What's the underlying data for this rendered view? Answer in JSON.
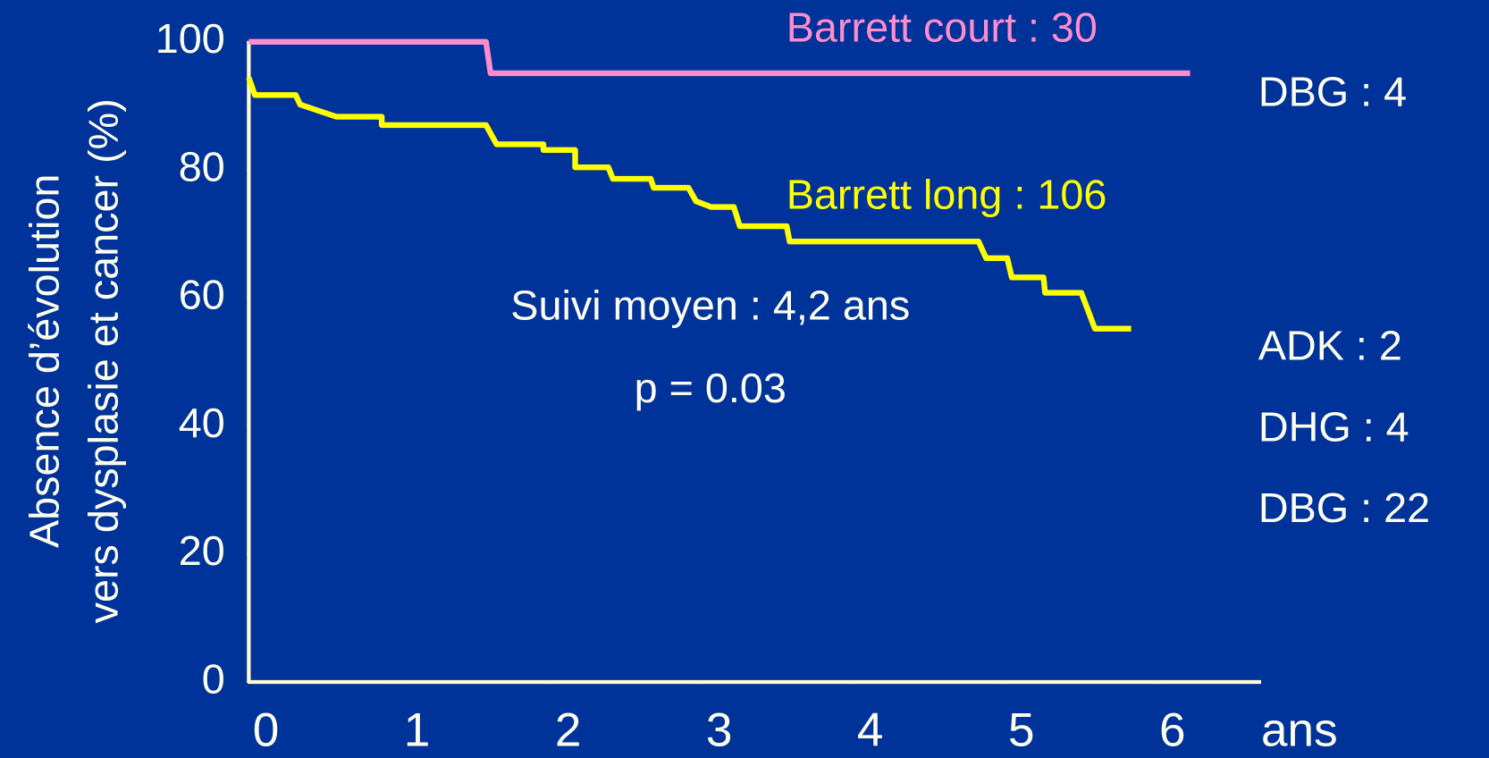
{
  "chart_data": {
    "type": "line",
    "y_label": [
      "Absence d’évolution",
      "vers dysplasie et cancer (%)"
    ],
    "x_label": "ans",
    "series": [
      {
        "name": "Barrett court : 30",
        "color": "#ff8ccc",
        "x": [
          0,
          1.57,
          1.6,
          6.23
        ],
        "values": [
          100,
          100,
          95.1,
          95.1
        ]
      },
      {
        "name": "Barrett long : 106",
        "color": "#ffff00",
        "x": [
          0,
          0.04,
          0.31,
          0.34,
          0.58,
          0.88,
          0.88,
          1.57,
          1.64,
          1.95,
          1.95,
          2.16,
          2.16,
          2.38,
          2.41,
          2.66,
          2.68,
          2.91,
          2.96,
          3.06,
          3.21,
          3.25,
          3.56,
          3.58,
          4.83,
          4.88,
          5.02,
          5.05,
          5.26,
          5.27,
          5.51,
          5.6,
          5.84
        ],
        "values": [
          94.4,
          91.7,
          91.7,
          90.2,
          88.3,
          88.3,
          87.0,
          87.0,
          84.0,
          84.0,
          83.1,
          83.1,
          80.4,
          80.4,
          78.6,
          78.6,
          77.2,
          77.2,
          75.1,
          74.2,
          74.2,
          71.2,
          71.2,
          68.8,
          68.8,
          66.2,
          66.2,
          63.2,
          63.2,
          60.8,
          60.8,
          55.2,
          55.2
        ]
      }
    ],
    "xlim": [
      0,
      6.7
    ],
    "xticks": [
      0,
      1,
      2,
      3,
      4,
      5,
      6
    ],
    "ylim": [
      0,
      100
    ],
    "yticks": [
      0,
      20,
      40,
      60,
      80,
      100
    ],
    "annotations": [
      "Suivi moyen : 4,2 ans",
      "p = 0.03",
      "DBG : 4",
      "ADK : 2",
      "DHG : 4",
      "DBG : 22"
    ]
  }
}
